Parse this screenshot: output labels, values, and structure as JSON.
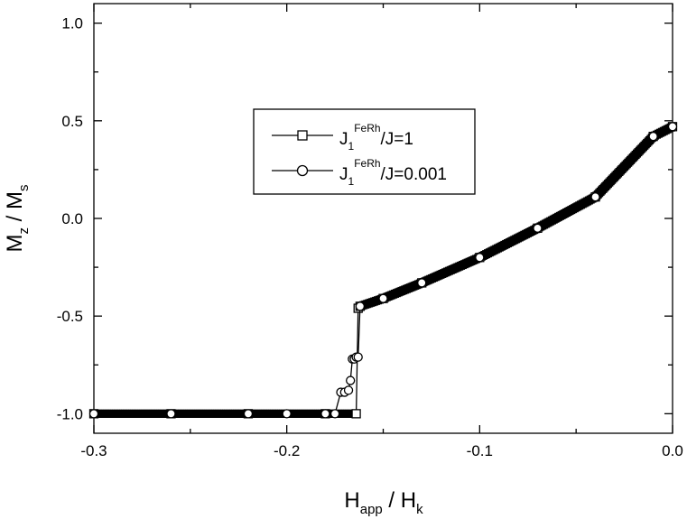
{
  "chart_data": {
    "type": "line",
    "xlabel": {
      "main": "H",
      "sub1": "app",
      "sep": " / H",
      "sub2": "k"
    },
    "ylabel": {
      "main": "M",
      "sub1": "z",
      "sep": " / M",
      "sub2": "s"
    },
    "xlim": [
      -0.3,
      0.0
    ],
    "ylim": [
      -1.1,
      1.1
    ],
    "x_ticks": [
      "-0.3",
      "-0.2",
      "-0.1",
      "0.0"
    ],
    "x_tick_values": [
      -0.3,
      -0.2,
      -0.1,
      0.0
    ],
    "y_ticks": [
      "-1.0",
      "-0.5",
      "0.0",
      "0.5",
      "1.0"
    ],
    "y_tick_values": [
      -1.0,
      -0.5,
      0.0,
      0.5,
      1.0
    ],
    "grid": false,
    "legend_position": "upper-center",
    "series": [
      {
        "legend": {
          "base": "J",
          "sub": "1",
          "sup": "FeRh",
          "tail": "/J=1"
        },
        "marker": "square",
        "color": "#000000",
        "x": [
          -0.3,
          -0.26,
          -0.22,
          -0.18,
          -0.164,
          -0.163,
          -0.162,
          -0.15,
          -0.13,
          -0.1,
          -0.07,
          -0.04,
          -0.01,
          0.0
        ],
        "y": [
          -1.0,
          -1.0,
          -1.0,
          -1.0,
          -1.0,
          -0.46,
          -0.45,
          -0.41,
          -0.33,
          -0.2,
          -0.05,
          0.11,
          0.42,
          0.47
        ]
      },
      {
        "legend": {
          "base": "J",
          "sub": "1",
          "sup": "FeRh",
          "tail": "/J=0.001"
        },
        "marker": "circle",
        "color": "#000000",
        "x": [
          -0.3,
          -0.26,
          -0.22,
          -0.2,
          -0.18,
          -0.175,
          -0.172,
          -0.17,
          -0.168,
          -0.167,
          -0.166,
          -0.165,
          -0.164,
          -0.163,
          -0.162,
          -0.15,
          -0.13,
          -0.1,
          -0.07,
          -0.04,
          -0.01,
          0.0
        ],
        "y": [
          -1.0,
          -1.0,
          -1.0,
          -1.0,
          -1.0,
          -1.0,
          -0.89,
          -0.89,
          -0.88,
          -0.83,
          -0.72,
          -0.72,
          -0.71,
          -0.71,
          -0.45,
          -0.41,
          -0.33,
          -0.2,
          -0.05,
          0.11,
          0.42,
          0.47
        ]
      }
    ]
  }
}
